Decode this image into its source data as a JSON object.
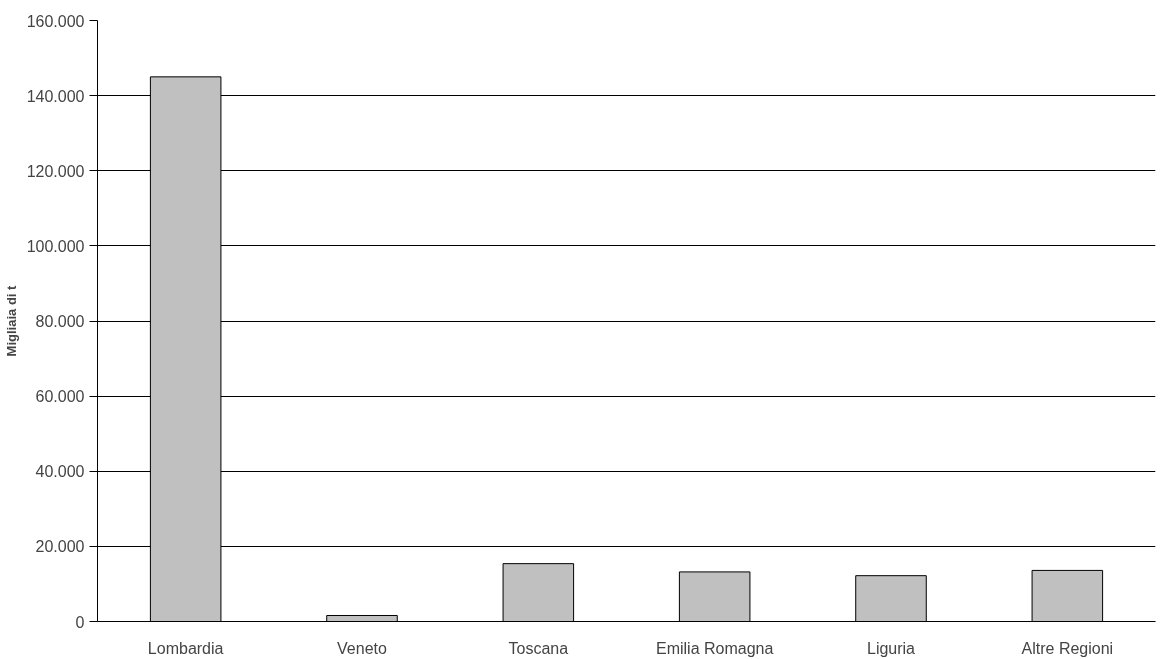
{
  "chart_data": {
    "type": "bar",
    "ylabel": "Migliaia di t",
    "categories": [
      "Lombardia",
      "Veneto",
      "Toscana",
      "Emilia Romagna",
      "Liguria",
      "Altre Regioni"
    ],
    "values": [
      145000,
      1600,
      15400,
      13200,
      12200,
      13600
    ],
    "color": "#c0c0c0",
    "ylim": [
      0,
      160000
    ],
    "yticks": [
      {
        "value": 0,
        "label": "0"
      },
      {
        "value": 20000,
        "label": "20.000"
      },
      {
        "value": 40000,
        "label": "40.000"
      },
      {
        "value": 60000,
        "label": "60.000"
      },
      {
        "value": 80000,
        "label": "80.000"
      },
      {
        "value": 100000,
        "label": "100.000"
      },
      {
        "value": 120000,
        "label": "120.000"
      },
      {
        "value": 140000,
        "label": "140.000"
      },
      {
        "value": 160000,
        "label": "160.000"
      }
    ],
    "grid": "y"
  }
}
